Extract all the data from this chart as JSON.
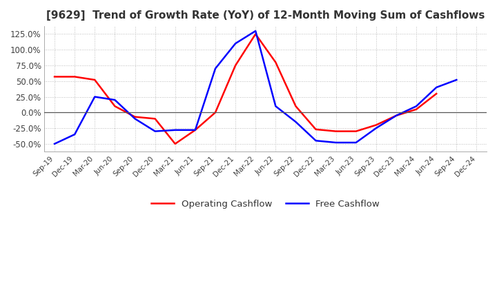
{
  "title": "[9629]  Trend of Growth Rate (YoY) of 12-Month Moving Sum of Cashflows",
  "title_fontsize": 11,
  "title_color": "#333333",
  "ylim": [
    -62.5,
    137.5
  ],
  "yticks": [
    -50,
    -25,
    0,
    25,
    50,
    75,
    100,
    125
  ],
  "yticklabels": [
    "-50.0%",
    "-25.0%",
    "0.0%",
    "25.0%",
    "50.0%",
    "75.0%",
    "100.0%",
    "125.0%"
  ],
  "x_labels": [
    "Sep-19",
    "Dec-19",
    "Mar-20",
    "Jun-20",
    "Sep-20",
    "Dec-20",
    "Mar-21",
    "Jun-21",
    "Sep-21",
    "Dec-21",
    "Mar-22",
    "Jun-22",
    "Sep-22",
    "Dec-22",
    "Mar-23",
    "Jun-23",
    "Sep-23",
    "Dec-23",
    "Mar-24",
    "Jun-24",
    "Sep-24",
    "Dec-24"
  ],
  "operating_cashflow": [
    57.0,
    57.0,
    52.0,
    10.0,
    -7.0,
    -10.0,
    -50.0,
    -28.0,
    0.0,
    75.0,
    125.0,
    80.0,
    10.0,
    -27.0,
    -30.0,
    -30.0,
    -20.0,
    -5.0,
    5.0,
    30.0,
    null,
    null
  ],
  "free_cashflow": [
    -50.0,
    -35.0,
    25.0,
    20.0,
    -10.0,
    -30.0,
    -28.0,
    -28.0,
    70.0,
    110.0,
    130.0,
    10.0,
    -15.0,
    -45.0,
    -48.0,
    -48.0,
    -25.0,
    -5.0,
    10.0,
    40.0,
    52.0,
    null
  ],
  "operating_color": "#ff0000",
  "free_color": "#0000ff",
  "legend_labels": [
    "Operating Cashflow",
    "Free Cashflow"
  ],
  "grid_color": "#bbbbbb",
  "grid_style": ":",
  "background_color": "#ffffff",
  "plot_bg_color": "#ffffff",
  "zero_line_color": "#555555"
}
